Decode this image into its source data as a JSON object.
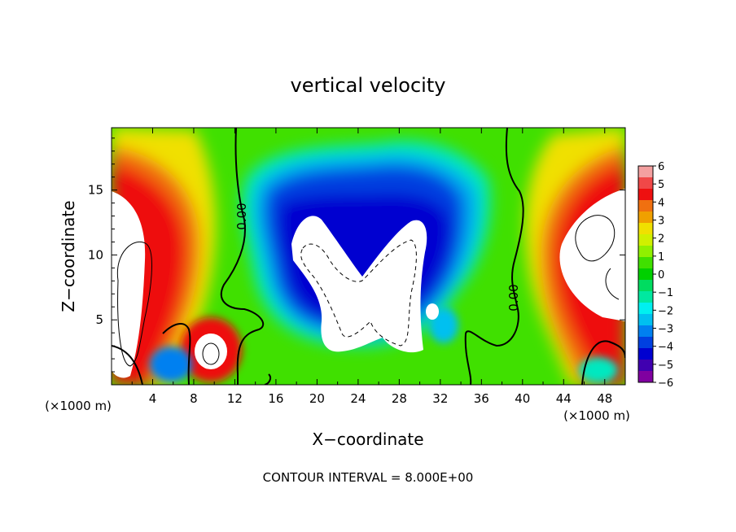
{
  "chart_data": {
    "type": "heatmap",
    "title": "vertical velocity",
    "xlabel": "X−coordinate",
    "ylabel": "Z−coordinate",
    "x_unit": "(×1000 m)",
    "y_unit": "(×1000 m)",
    "xlim": [
      0,
      50
    ],
    "ylim": [
      0,
      19.8
    ],
    "x_ticks": [
      "4",
      "8",
      "12",
      "16",
      "20",
      "24",
      "28",
      "32",
      "36",
      "40",
      "44",
      "48"
    ],
    "y_ticks": [
      "5",
      "10",
      "15"
    ],
    "colorbar": {
      "min": -6,
      "max": 6,
      "ticks": [
        "6",
        "5",
        "4",
        "3",
        "2",
        "1",
        "0",
        "−1",
        "−2",
        "−3",
        "−4",
        "−5",
        "−6"
      ],
      "colors": [
        "#f4a0a0",
        "#f04848",
        "#ee1010",
        "#f07010",
        "#f0a000",
        "#f0e000",
        "#d0f000",
        "#90f000",
        "#40e000",
        "#00d000",
        "#00dc60",
        "#00e8a0",
        "#00f0f0",
        "#00c0f0",
        "#0080f0",
        "#0040e0",
        "#0000d0",
        "#4000b0",
        "#8000a0"
      ]
    },
    "contour_labels": [
      "0.00",
      "0.00"
    ],
    "contour_interval_text": "CONTOUR INTERVAL = 8.000E+00",
    "features": [
      {
        "kind": "updraft",
        "x": 2,
        "z": 9
      },
      {
        "kind": "updraft",
        "x": 9,
        "z": 2.5
      },
      {
        "kind": "downdraft",
        "x": 24,
        "z": 7
      },
      {
        "kind": "updraft",
        "x": 47.5,
        "z": 9
      }
    ]
  }
}
